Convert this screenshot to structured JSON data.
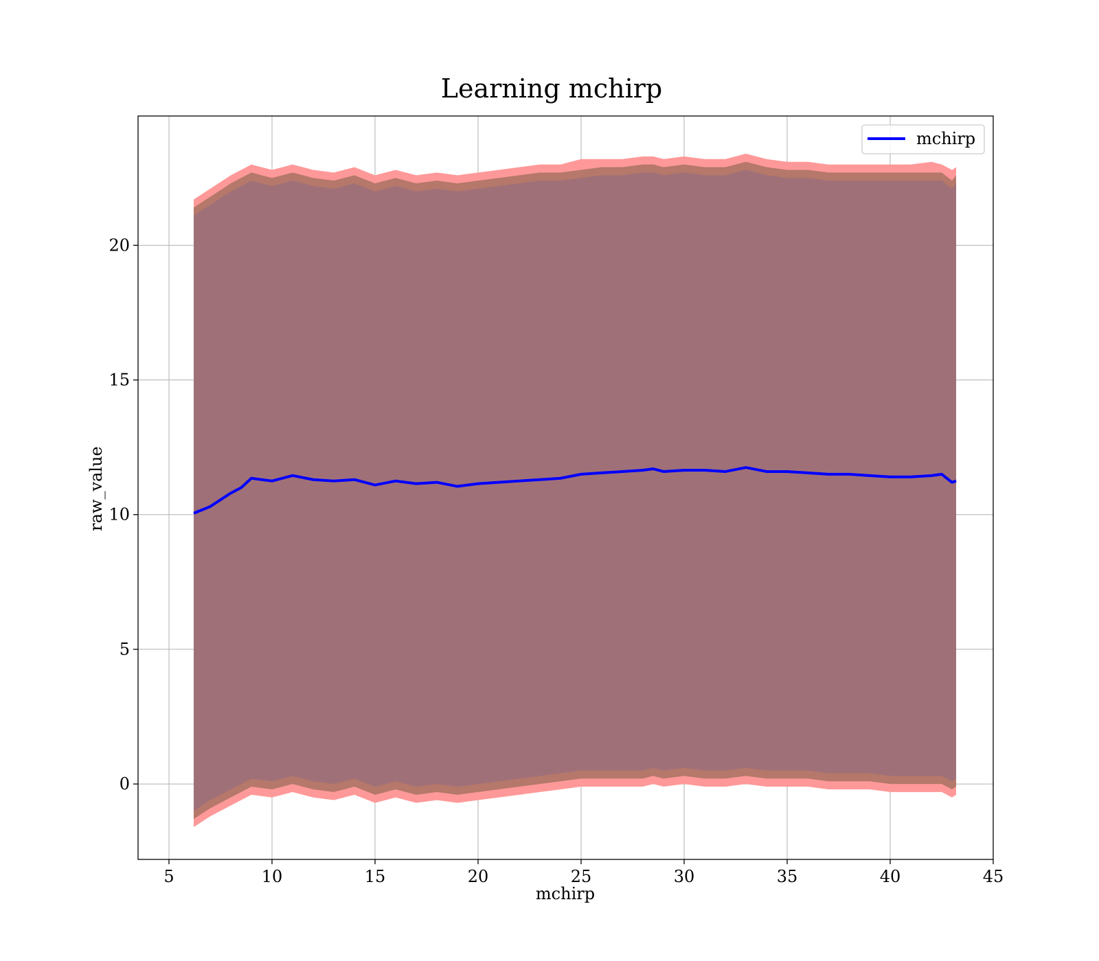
{
  "chart_data": {
    "type": "area",
    "title": "Learning mchirp",
    "xlabel": "mchirp",
    "ylabel": "raw_value",
    "xlim": [
      3.5,
      45
    ],
    "ylim": [
      -2.8,
      24.8
    ],
    "xticks": [
      5,
      10,
      15,
      20,
      25,
      30,
      35,
      40,
      45
    ],
    "yticks": [
      0,
      5,
      10,
      15,
      20
    ],
    "grid": true,
    "legend_position": "top-right",
    "colors": {
      "line": "#0000ff",
      "outer_band": "#ff9999",
      "mid_band": "#b5786a",
      "inner_band": "#a07078",
      "grid": "#b0b0b0"
    },
    "x": [
      6.2,
      7,
      8,
      8.5,
      9,
      10,
      11,
      12,
      13,
      14,
      15,
      16,
      17,
      18,
      19,
      20,
      21,
      22,
      23,
      24,
      25,
      26,
      27,
      28,
      28.5,
      29,
      30,
      31,
      32,
      33,
      34,
      35,
      36,
      37,
      38,
      39,
      40,
      41,
      42,
      42.5,
      43,
      43.2
    ],
    "series": [
      {
        "name": "mchirp",
        "values": [
          10.05,
          10.3,
          10.8,
          11.0,
          11.35,
          11.25,
          11.45,
          11.3,
          11.25,
          11.3,
          11.1,
          11.25,
          11.15,
          11.2,
          11.05,
          11.15,
          11.2,
          11.25,
          11.3,
          11.35,
          11.5,
          11.55,
          11.6,
          11.65,
          11.7,
          11.6,
          11.65,
          11.65,
          11.6,
          11.75,
          11.6,
          11.6,
          11.55,
          11.5,
          11.5,
          11.45,
          11.4,
          11.4,
          11.45,
          11.5,
          11.2,
          11.25
        ]
      }
    ],
    "bands": {
      "outer_upper": [
        21.7,
        22.1,
        22.6,
        22.8,
        23.0,
        22.8,
        23.0,
        22.8,
        22.7,
        22.9,
        22.6,
        22.8,
        22.6,
        22.7,
        22.6,
        22.7,
        22.8,
        22.9,
        23.0,
        23.0,
        23.2,
        23.2,
        23.2,
        23.3,
        23.3,
        23.2,
        23.3,
        23.2,
        23.2,
        23.4,
        23.2,
        23.1,
        23.1,
        23.0,
        23.0,
        23.0,
        23.0,
        23.0,
        23.1,
        23.0,
        22.8,
        22.9
      ],
      "mid_upper": [
        21.4,
        21.8,
        22.3,
        22.5,
        22.7,
        22.5,
        22.7,
        22.5,
        22.4,
        22.6,
        22.3,
        22.5,
        22.3,
        22.4,
        22.3,
        22.4,
        22.5,
        22.6,
        22.7,
        22.7,
        22.8,
        22.9,
        22.9,
        23.0,
        23.0,
        22.9,
        23.0,
        22.9,
        22.9,
        23.1,
        22.9,
        22.8,
        22.8,
        22.7,
        22.7,
        22.7,
        22.7,
        22.7,
        22.7,
        22.7,
        22.4,
        22.6
      ],
      "inner_upper": [
        21.1,
        21.5,
        22.0,
        22.2,
        22.4,
        22.2,
        22.4,
        22.2,
        22.1,
        22.3,
        22.0,
        22.2,
        22.0,
        22.1,
        22.0,
        22.1,
        22.2,
        22.3,
        22.4,
        22.4,
        22.5,
        22.6,
        22.6,
        22.7,
        22.7,
        22.6,
        22.7,
        22.6,
        22.6,
        22.8,
        22.6,
        22.5,
        22.5,
        22.4,
        22.4,
        22.4,
        22.4,
        22.4,
        22.4,
        22.4,
        22.1,
        22.3
      ],
      "inner_lower": [
        -1.0,
        -0.6,
        -0.2,
        0.0,
        0.2,
        0.1,
        0.3,
        0.1,
        0.0,
        0.2,
        -0.1,
        0.1,
        -0.1,
        0.0,
        -0.1,
        0.0,
        0.1,
        0.2,
        0.3,
        0.4,
        0.5,
        0.5,
        0.5,
        0.5,
        0.6,
        0.5,
        0.6,
        0.5,
        0.5,
        0.6,
        0.5,
        0.5,
        0.5,
        0.4,
        0.4,
        0.4,
        0.3,
        0.3,
        0.3,
        0.3,
        0.1,
        0.2
      ],
      "mid_lower": [
        -1.3,
        -0.9,
        -0.5,
        -0.3,
        -0.1,
        -0.2,
        0.0,
        -0.2,
        -0.3,
        -0.1,
        -0.4,
        -0.2,
        -0.4,
        -0.3,
        -0.4,
        -0.3,
        -0.2,
        -0.1,
        0.0,
        0.1,
        0.2,
        0.2,
        0.2,
        0.2,
        0.3,
        0.2,
        0.3,
        0.2,
        0.2,
        0.3,
        0.2,
        0.2,
        0.2,
        0.1,
        0.1,
        0.1,
        0.0,
        0.0,
        0.0,
        0.0,
        -0.2,
        -0.1
      ],
      "outer_lower": [
        -1.6,
        -1.2,
        -0.8,
        -0.6,
        -0.4,
        -0.5,
        -0.3,
        -0.5,
        -0.6,
        -0.4,
        -0.7,
        -0.5,
        -0.7,
        -0.6,
        -0.7,
        -0.6,
        -0.5,
        -0.4,
        -0.3,
        -0.2,
        -0.1,
        -0.1,
        -0.1,
        -0.1,
        0.0,
        -0.1,
        0.0,
        -0.1,
        -0.1,
        0.0,
        -0.1,
        -0.1,
        -0.1,
        -0.2,
        -0.2,
        -0.2,
        -0.3,
        -0.3,
        -0.3,
        -0.3,
        -0.5,
        -0.4
      ]
    }
  }
}
